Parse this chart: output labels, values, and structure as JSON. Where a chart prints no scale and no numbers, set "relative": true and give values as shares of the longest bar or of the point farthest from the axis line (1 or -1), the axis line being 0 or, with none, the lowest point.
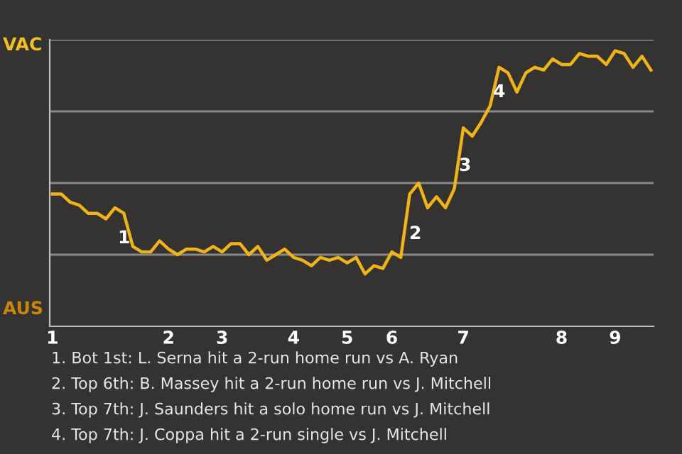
{
  "chart_data": {
    "type": "line",
    "relative": true,
    "categories": [
      "1",
      null,
      null,
      null,
      null,
      null,
      null,
      null,
      null,
      null,
      null,
      null,
      null,
      "2",
      null,
      null,
      null,
      null,
      null,
      "3",
      null,
      null,
      null,
      null,
      null,
      null,
      null,
      "4",
      null,
      null,
      null,
      null,
      null,
      "5",
      null,
      null,
      null,
      null,
      "6",
      null,
      null,
      null,
      null,
      null,
      null,
      null,
      "7",
      null,
      null,
      null,
      null,
      null,
      null,
      null,
      null,
      null,
      null,
      "8",
      null,
      null,
      null,
      null,
      null,
      "9",
      null,
      null,
      null,
      null
    ],
    "series": [
      {
        "color": "#f0b418",
        "values": [
          0.48,
          0.48,
          0.45,
          0.44,
          0.41,
          0.41,
          0.39,
          0.43,
          0.41,
          0.29,
          0.27,
          0.27,
          0.31,
          0.28,
          0.26,
          0.28,
          0.28,
          0.27,
          0.29,
          0.27,
          0.3,
          0.3,
          0.26,
          0.29,
          0.24,
          0.26,
          0.28,
          0.25,
          0.24,
          0.22,
          0.25,
          0.24,
          0.25,
          0.23,
          0.25,
          0.19,
          0.22,
          0.21,
          0.27,
          0.25,
          0.48,
          0.52,
          0.43,
          0.47,
          0.43,
          0.5,
          0.72,
          0.69,
          0.74,
          0.8,
          0.94,
          0.92,
          0.85,
          0.92,
          0.94,
          0.93,
          0.97,
          0.95,
          0.95,
          0.99,
          0.98,
          0.98,
          0.95,
          1,
          0.99,
          0.94,
          0.98,
          0.93
        ]
      }
    ],
    "grid": "y",
    "tick_labels": "x",
    "marker": "none",
    "line_style": "solid",
    "annotations": [
      "VAC",
      "AUS",
      "1",
      "2",
      "3",
      "4",
      "1. Bot 1st: L. Serna hit a 2-run home run vs A. Ryan",
      "2. Top 6th: B. Massey hit a 2-run home run vs J. Mitchell",
      "3. Top 7th: J. Saunders hit a solo home run vs J. Mitchell",
      "4. Top 7th: J. Coppa hit a 2-run single vs J. Mitchell"
    ]
  }
}
